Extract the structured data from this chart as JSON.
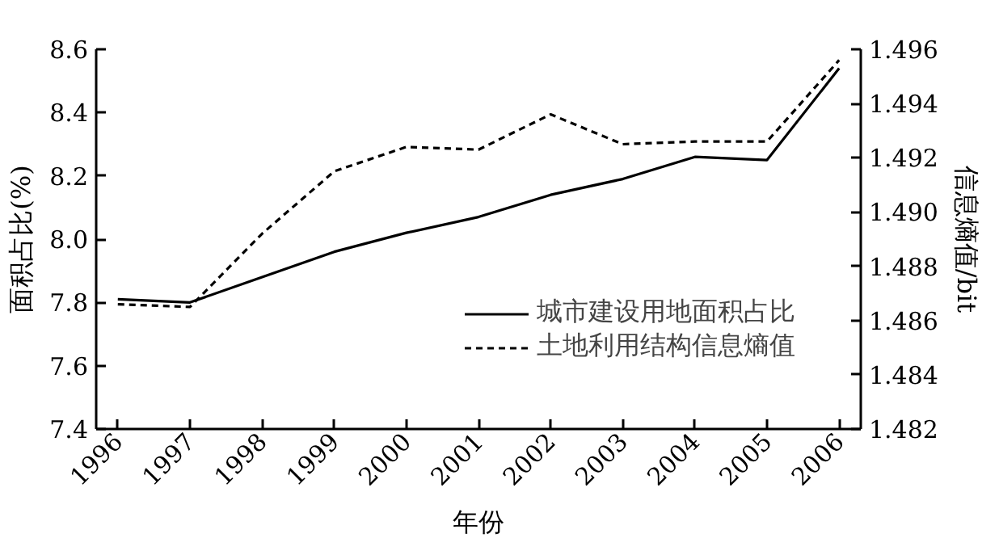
{
  "chart_data": {
    "type": "line",
    "xlabel": "年份",
    "ylabel": "面积占比(%)",
    "y2label": "信息熵值/bit",
    "x": [
      1996,
      1997,
      1998,
      1999,
      2000,
      2001,
      2002,
      2003,
      2004,
      2005,
      2006
    ],
    "series": [
      {
        "name": "城市建设用地面积占比",
        "color": "#000000",
        "line_style": "solid",
        "values": [
          7.81,
          7.8,
          7.88,
          7.96,
          8.02,
          8.07,
          8.14,
          8.19,
          8.26,
          8.25,
          8.54
        ]
      },
      {
        "name": "土地利用结构信息熵值",
        "color": "#000000",
        "line_style": "dashed",
        "axis": "y2",
        "values": [
          1.4866,
          1.4865,
          1.4892,
          1.4915,
          1.4924,
          1.4923,
          1.4936,
          1.4925,
          1.4926,
          1.4926,
          1.4956
        ]
      }
    ],
    "xlim": [
      1995.7,
      2006.3
    ],
    "xticks": [
      1996,
      1997,
      1998,
      1999,
      2000,
      2001,
      2002,
      2003,
      2004,
      2005,
      2006
    ],
    "ylim": [
      7.4,
      8.6
    ],
    "yticks": [
      7.4,
      7.6,
      7.8,
      {
        "value": 8,
        "label": "8.0"
      },
      8.2,
      8.4,
      8.6
    ],
    "y2lim": [
      1.482,
      1.496
    ],
    "y2ticks": [
      1.482,
      1.484,
      1.486,
      1.488,
      {
        "value": 1.49,
        "label": "1.490"
      },
      1.492,
      1.494,
      1.496
    ],
    "grid": false,
    "legend": "bottom right",
    "marker": "none"
  }
}
